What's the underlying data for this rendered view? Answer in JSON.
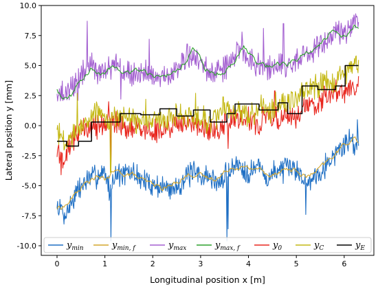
{
  "chart_data": {
    "type": "line",
    "xlabel": "Longitudinal position x [m]",
    "ylabel": "Lateral position y [mm]",
    "xlim": [
      -0.33,
      6.62
    ],
    "ylim": [
      -10.8,
      10.0
    ],
    "xticks": [
      "0",
      "1",
      "2",
      "3",
      "4",
      "5",
      "6"
    ],
    "xtick_values": [
      0,
      1,
      2,
      3,
      4,
      5,
      6
    ],
    "yticks": [
      "10.0",
      "7.5",
      "5.0",
      "2.5",
      "0.0",
      "-2.5",
      "-5.0",
      "-7.5",
      "-10.0"
    ],
    "ytick_values": [
      10,
      7.5,
      5,
      2.5,
      0,
      -2.5,
      -5,
      -7.5,
      -10
    ],
    "grid": false,
    "legend_position": "bottom",
    "series": [
      {
        "name": "y_min",
        "base": "y",
        "sub": "min",
        "color": "#1f6fc4",
        "style": "noisy",
        "points": [
          [
            0,
            -6.8
          ],
          [
            0.2,
            -7.2
          ],
          [
            0.4,
            -5.6
          ],
          [
            0.6,
            -4.6
          ],
          [
            0.8,
            -4.2
          ],
          [
            1.0,
            -3.8
          ],
          [
            1.1,
            -5.5
          ],
          [
            1.2,
            -4.0
          ],
          [
            1.4,
            -4.1
          ],
          [
            1.6,
            -3.9
          ],
          [
            1.8,
            -4.6
          ],
          [
            2.0,
            -4.9
          ],
          [
            2.2,
            -5.1
          ],
          [
            2.4,
            -5.3
          ],
          [
            2.6,
            -4.7
          ],
          [
            2.8,
            -4.0
          ],
          [
            3.0,
            -4.1
          ],
          [
            3.2,
            -4.3
          ],
          [
            3.4,
            -4.9
          ],
          [
            3.6,
            -3.6
          ],
          [
            3.8,
            -3.2
          ],
          [
            4.0,
            -3.9
          ],
          [
            4.2,
            -3.3
          ],
          [
            4.4,
            -4.5
          ],
          [
            4.6,
            -3.6
          ],
          [
            4.8,
            -3.7
          ],
          [
            5.0,
            -3.5
          ],
          [
            5.2,
            -4.8
          ],
          [
            5.4,
            -4.1
          ],
          [
            5.6,
            -3.3
          ],
          [
            5.8,
            -2.4
          ],
          [
            6.0,
            -1.6
          ],
          [
            6.1,
            -1.2
          ],
          [
            6.3,
            -1.6
          ]
        ],
        "spikes": [
          [
            0.15,
            -8.2
          ],
          [
            1.13,
            -9.6
          ],
          [
            3.55,
            -9.6
          ],
          [
            3.57,
            -8.6
          ],
          [
            5.2,
            -7.4
          ],
          [
            6.28,
            0.5
          ]
        ]
      },
      {
        "name": "y_min,f",
        "base": "y",
        "sub": "min, f",
        "color": "#d4a52a",
        "style": "smooth",
        "points": [
          [
            0,
            -6.9
          ],
          [
            0.2,
            -6.6
          ],
          [
            0.4,
            -5.6
          ],
          [
            0.6,
            -4.8
          ],
          [
            0.8,
            -4.3
          ],
          [
            1.0,
            -4.5
          ],
          [
            1.2,
            -3.8
          ],
          [
            1.4,
            -4.0
          ],
          [
            1.6,
            -4.1
          ],
          [
            1.8,
            -4.6
          ],
          [
            2.0,
            -4.9
          ],
          [
            2.2,
            -5.2
          ],
          [
            2.4,
            -5.0
          ],
          [
            2.6,
            -4.4
          ],
          [
            2.8,
            -4.0
          ],
          [
            3.0,
            -4.2
          ],
          [
            3.2,
            -4.4
          ],
          [
            3.4,
            -4.3
          ],
          [
            3.6,
            -3.5
          ],
          [
            3.8,
            -3.4
          ],
          [
            4.0,
            -3.6
          ],
          [
            4.2,
            -3.5
          ],
          [
            4.4,
            -4.2
          ],
          [
            4.6,
            -3.8
          ],
          [
            4.8,
            -3.6
          ],
          [
            5.0,
            -3.8
          ],
          [
            5.2,
            -4.3
          ],
          [
            5.4,
            -3.9
          ],
          [
            5.6,
            -3.2
          ],
          [
            5.8,
            -2.4
          ],
          [
            6.0,
            -1.6
          ],
          [
            6.2,
            -1.0
          ],
          [
            6.3,
            -1.3
          ]
        ]
      },
      {
        "name": "y_max",
        "base": "y",
        "sub": "max",
        "color": "#a35fd0",
        "style": "noisy",
        "points": [
          [
            0,
            3.0
          ],
          [
            0.2,
            2.4
          ],
          [
            0.3,
            3.2
          ],
          [
            0.5,
            4.2
          ],
          [
            0.7,
            5.3
          ],
          [
            0.8,
            4.6
          ],
          [
            1.0,
            4.6
          ],
          [
            1.2,
            5.0
          ],
          [
            1.4,
            4.4
          ],
          [
            1.6,
            4.3
          ],
          [
            1.8,
            4.4
          ],
          [
            2.0,
            4.2
          ],
          [
            2.2,
            4.0
          ],
          [
            2.4,
            4.3
          ],
          [
            2.6,
            5.1
          ],
          [
            2.8,
            5.8
          ],
          [
            3.0,
            5.2
          ],
          [
            3.2,
            4.3
          ],
          [
            3.4,
            4.4
          ],
          [
            3.6,
            5.3
          ],
          [
            3.8,
            6.4
          ],
          [
            4.0,
            5.6
          ],
          [
            4.2,
            5.0
          ],
          [
            4.4,
            4.9
          ],
          [
            4.6,
            5.2
          ],
          [
            4.8,
            4.8
          ],
          [
            5.0,
            5.3
          ],
          [
            5.2,
            6.0
          ],
          [
            5.4,
            6.3
          ],
          [
            5.6,
            7.0
          ],
          [
            5.8,
            7.8
          ],
          [
            6.0,
            7.4
          ],
          [
            6.2,
            8.6
          ],
          [
            6.3,
            9.2
          ]
        ],
        "spikes": [
          [
            0.63,
            8.7
          ],
          [
            1.93,
            7.2
          ],
          [
            2.72,
            6.8
          ],
          [
            3.86,
            7.8
          ],
          [
            4.31,
            8.1
          ],
          [
            4.73,
            8.5
          ],
          [
            1.33,
            2.2
          ],
          [
            0.43,
            2.1
          ]
        ]
      },
      {
        "name": "y_max,f",
        "base": "y",
        "sub": "max, f",
        "color": "#2ca02c",
        "style": "smooth",
        "points": [
          [
            0,
            3.1
          ],
          [
            0.1,
            2.3
          ],
          [
            0.2,
            2.1
          ],
          [
            0.3,
            2.5
          ],
          [
            0.5,
            3.8
          ],
          [
            0.7,
            4.7
          ],
          [
            0.85,
            4.2
          ],
          [
            1.0,
            4.3
          ],
          [
            1.15,
            5.1
          ],
          [
            1.3,
            4.6
          ],
          [
            1.5,
            4.5
          ],
          [
            1.7,
            4.7
          ],
          [
            1.9,
            4.3
          ],
          [
            2.1,
            4.1
          ],
          [
            2.3,
            4.2
          ],
          [
            2.5,
            4.7
          ],
          [
            2.7,
            5.4
          ],
          [
            2.85,
            6.5
          ],
          [
            2.95,
            6.0
          ],
          [
            3.1,
            4.7
          ],
          [
            3.3,
            4.3
          ],
          [
            3.5,
            4.6
          ],
          [
            3.7,
            5.3
          ],
          [
            3.9,
            6.5
          ],
          [
            4.05,
            5.9
          ],
          [
            4.2,
            5.0
          ],
          [
            4.4,
            5.0
          ],
          [
            4.6,
            5.3
          ],
          [
            4.8,
            5.0
          ],
          [
            5.0,
            5.5
          ],
          [
            5.2,
            6.1
          ],
          [
            5.4,
            6.4
          ],
          [
            5.6,
            7.1
          ],
          [
            5.75,
            7.9
          ],
          [
            5.9,
            7.5
          ],
          [
            6.0,
            7.3
          ],
          [
            6.1,
            7.9
          ],
          [
            6.2,
            8.4
          ],
          [
            6.3,
            8.3
          ]
        ]
      },
      {
        "name": "y_0",
        "base": "y",
        "sub": "0",
        "color": "#e8261e",
        "style": "noisy",
        "points": [
          [
            0,
            -2.0
          ],
          [
            0.15,
            -2.8
          ],
          [
            0.3,
            -1.2
          ],
          [
            0.45,
            -0.5
          ],
          [
            0.6,
            -0.3
          ],
          [
            0.8,
            -0.1
          ],
          [
            1.0,
            0.2
          ],
          [
            1.2,
            0.3
          ],
          [
            1.4,
            0.0
          ],
          [
            1.6,
            -0.2
          ],
          [
            1.8,
            -0.5
          ],
          [
            2.0,
            -0.6
          ],
          [
            2.2,
            -0.3
          ],
          [
            2.4,
            -0.1
          ],
          [
            2.6,
            0.3
          ],
          [
            2.8,
            0.1
          ],
          [
            3.0,
            0.0
          ],
          [
            3.2,
            -0.4
          ],
          [
            3.4,
            -0.2
          ],
          [
            3.6,
            0.3
          ],
          [
            3.8,
            0.4
          ],
          [
            4.0,
            0.6
          ],
          [
            4.2,
            0.2
          ],
          [
            4.4,
            0.8
          ],
          [
            4.6,
            0.5
          ],
          [
            4.8,
            0.9
          ],
          [
            5.0,
            0.7
          ],
          [
            5.2,
            1.6
          ],
          [
            5.4,
            1.8
          ],
          [
            5.6,
            2.3
          ],
          [
            5.8,
            2.6
          ],
          [
            6.0,
            3.0
          ],
          [
            6.2,
            3.3
          ],
          [
            6.3,
            3.6
          ]
        ],
        "spikes": [
          [
            0.08,
            -4.1
          ],
          [
            1.13,
            -3.7
          ],
          [
            1.08,
            2.0
          ],
          [
            3.57,
            -1.9
          ],
          [
            4.55,
            2.9
          ],
          [
            5.58,
            3.3
          ]
        ]
      },
      {
        "name": "y_C",
        "base": "y",
        "sub": "C",
        "color": "#c4b814",
        "style": "noisy",
        "points": [
          [
            0,
            -0.4
          ],
          [
            0.15,
            -1.6
          ],
          [
            0.3,
            -0.9
          ],
          [
            0.5,
            0.2
          ],
          [
            0.7,
            0.8
          ],
          [
            0.9,
            1.2
          ],
          [
            1.1,
            0.6
          ],
          [
            1.3,
            0.7
          ],
          [
            1.5,
            0.6
          ],
          [
            1.7,
            0.3
          ],
          [
            1.9,
            0.4
          ],
          [
            2.1,
            0.2
          ],
          [
            2.3,
            0.5
          ],
          [
            2.5,
            0.9
          ],
          [
            2.7,
            1.1
          ],
          [
            2.9,
            0.6
          ],
          [
            3.1,
            0.5
          ],
          [
            3.3,
            0.7
          ],
          [
            3.5,
            1.2
          ],
          [
            3.7,
            1.4
          ],
          [
            3.9,
            1.1
          ],
          [
            4.1,
            0.9
          ],
          [
            4.3,
            1.5
          ],
          [
            4.5,
            1.3
          ],
          [
            4.7,
            1.8
          ],
          [
            4.9,
            2.2
          ],
          [
            5.1,
            2.5
          ],
          [
            5.3,
            3.1
          ],
          [
            5.5,
            3.3
          ],
          [
            5.7,
            3.6
          ],
          [
            5.9,
            4.1
          ],
          [
            6.1,
            4.7
          ],
          [
            6.2,
            5.3
          ],
          [
            6.3,
            5.2
          ]
        ],
        "spikes": [
          [
            0.42,
            2.7
          ],
          [
            1.12,
            -3.9
          ],
          [
            1.85,
            2.2
          ],
          [
            2.9,
            2.7
          ],
          [
            3.47,
            2.4
          ],
          [
            4.57,
            2.8
          ],
          [
            5.55,
            4.3
          ],
          [
            5.72,
            3.5
          ]
        ]
      },
      {
        "name": "y_E",
        "base": "y",
        "sub": "E",
        "color": "#000000",
        "style": "step",
        "points": [
          [
            0,
            -1.3
          ],
          [
            0.2,
            -1.3
          ],
          [
            0.2,
            -1.7
          ],
          [
            0.45,
            -1.7
          ],
          [
            0.45,
            -1.3
          ],
          [
            0.72,
            -1.3
          ],
          [
            0.72,
            0.3
          ],
          [
            1.32,
            0.3
          ],
          [
            1.32,
            1.0
          ],
          [
            1.75,
            1.0
          ],
          [
            1.75,
            0.9
          ],
          [
            2.15,
            0.9
          ],
          [
            2.15,
            1.4
          ],
          [
            2.5,
            1.4
          ],
          [
            2.5,
            0.8
          ],
          [
            2.85,
            0.8
          ],
          [
            2.85,
            1.3
          ],
          [
            3.2,
            1.3
          ],
          [
            3.2,
            0.3
          ],
          [
            3.55,
            0.3
          ],
          [
            3.55,
            1.0
          ],
          [
            3.72,
            1.0
          ],
          [
            3.72,
            1.8
          ],
          [
            4.22,
            1.8
          ],
          [
            4.22,
            1.3
          ],
          [
            4.62,
            1.3
          ],
          [
            4.62,
            1.9
          ],
          [
            4.82,
            1.9
          ],
          [
            4.82,
            1.0
          ],
          [
            5.12,
            1.0
          ],
          [
            5.12,
            3.3
          ],
          [
            5.45,
            3.3
          ],
          [
            5.45,
            3.0
          ],
          [
            5.82,
            3.0
          ],
          [
            5.82,
            3.3
          ],
          [
            6.02,
            3.3
          ],
          [
            6.02,
            5.0
          ],
          [
            6.3,
            5.0
          ]
        ]
      }
    ]
  }
}
